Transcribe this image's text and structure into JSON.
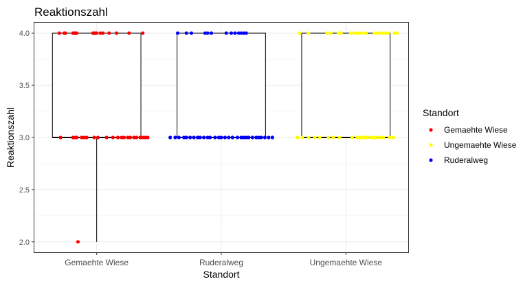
{
  "chart_data": {
    "type": "boxplot-jitter",
    "title": "Reaktionszahl",
    "xlabel": "Standort",
    "ylabel": "Reaktionszahl",
    "categories": [
      "Gemaehte Wiese",
      "Ruderalweg",
      "Ungemaehte Wiese"
    ],
    "ylim": [
      1.9,
      4.1
    ],
    "yticks": [
      "2.0",
      "2.5",
      "3.0",
      "3.5",
      "4.0"
    ],
    "grid": true,
    "legend": {
      "title": "Standort",
      "placement": "right",
      "entries": [
        {
          "label": "Gemaehte Wiese",
          "color": "#ff0000"
        },
        {
          "label": "Ungemaehte Wiese",
          "color": "#ffff00"
        },
        {
          "label": "Ruderalweg",
          "color": "#0000ff"
        }
      ]
    },
    "boxes": [
      {
        "category": "Gemaehte Wiese",
        "min": 2.0,
        "q1": 3.0,
        "median": 3.0,
        "q3": 4.0,
        "max": 4.0,
        "outliers": []
      },
      {
        "category": "Ruderalweg",
        "min": 3.0,
        "q1": 3.0,
        "median": 3.0,
        "q3": 4.0,
        "max": 4.0,
        "outliers": []
      },
      {
        "category": "Ungemaehte Wiese",
        "min": 3.0,
        "q1": 3.0,
        "median": 3.0,
        "q3": 4.0,
        "max": 4.0,
        "outliers": []
      }
    ],
    "series": [
      {
        "name": "Gemaehte Wiese",
        "color": "#ff0000",
        "category": "Gemaehte Wiese",
        "points": [
          {
            "jitter": -0.3,
            "y": 4.0
          },
          {
            "jitter": -0.26,
            "y": 4.0
          },
          {
            "jitter": -0.25,
            "y": 4.0
          },
          {
            "jitter": -0.19,
            "y": 4.0
          },
          {
            "jitter": -0.18,
            "y": 4.0
          },
          {
            "jitter": -0.17,
            "y": 4.0
          },
          {
            "jitter": -0.16,
            "y": 4.0
          },
          {
            "jitter": -0.03,
            "y": 4.0
          },
          {
            "jitter": -0.02,
            "y": 4.0
          },
          {
            "jitter": -0.01,
            "y": 4.0
          },
          {
            "jitter": 0.0,
            "y": 4.0
          },
          {
            "jitter": 0.03,
            "y": 4.0
          },
          {
            "jitter": 0.05,
            "y": 4.0
          },
          {
            "jitter": 0.1,
            "y": 4.0
          },
          {
            "jitter": 0.16,
            "y": 4.0
          },
          {
            "jitter": 0.26,
            "y": 4.0
          },
          {
            "jitter": 0.37,
            "y": 4.0
          },
          {
            "jitter": -0.29,
            "y": 3.0
          },
          {
            "jitter": -0.19,
            "y": 3.0
          },
          {
            "jitter": -0.17,
            "y": 3.0
          },
          {
            "jitter": -0.16,
            "y": 3.0
          },
          {
            "jitter": -0.12,
            "y": 3.0
          },
          {
            "jitter": -0.1,
            "y": 3.0
          },
          {
            "jitter": -0.08,
            "y": 3.0
          },
          {
            "jitter": -0.02,
            "y": 3.0
          },
          {
            "jitter": 0.01,
            "y": 3.0
          },
          {
            "jitter": 0.08,
            "y": 3.0
          },
          {
            "jitter": 0.13,
            "y": 3.0
          },
          {
            "jitter": 0.17,
            "y": 3.0
          },
          {
            "jitter": 0.2,
            "y": 3.0
          },
          {
            "jitter": 0.22,
            "y": 3.0
          },
          {
            "jitter": 0.25,
            "y": 3.0
          },
          {
            "jitter": 0.27,
            "y": 3.0
          },
          {
            "jitter": 0.3,
            "y": 3.0
          },
          {
            "jitter": 0.32,
            "y": 3.0
          },
          {
            "jitter": 0.35,
            "y": 3.0
          },
          {
            "jitter": 0.37,
            "y": 3.0
          },
          {
            "jitter": 0.39,
            "y": 3.0
          },
          {
            "jitter": 0.41,
            "y": 3.0
          },
          {
            "jitter": -0.15,
            "y": 2.0
          }
        ]
      },
      {
        "name": "Ruderalweg",
        "color": "#0000ff",
        "category": "Ruderalweg",
        "points": [
          {
            "jitter": -0.35,
            "y": 4.0
          },
          {
            "jitter": -0.28,
            "y": 4.0
          },
          {
            "jitter": -0.24,
            "y": 4.0
          },
          {
            "jitter": -0.13,
            "y": 4.0
          },
          {
            "jitter": -0.11,
            "y": 4.0
          },
          {
            "jitter": -0.08,
            "y": 4.0
          },
          {
            "jitter": 0.04,
            "y": 4.0
          },
          {
            "jitter": 0.08,
            "y": 4.0
          },
          {
            "jitter": 0.11,
            "y": 4.0
          },
          {
            "jitter": 0.14,
            "y": 4.0
          },
          {
            "jitter": 0.16,
            "y": 4.0
          },
          {
            "jitter": 0.18,
            "y": 4.0
          },
          {
            "jitter": 0.2,
            "y": 4.0
          },
          {
            "jitter": -0.41,
            "y": 3.0
          },
          {
            "jitter": -0.37,
            "y": 3.0
          },
          {
            "jitter": -0.34,
            "y": 3.0
          },
          {
            "jitter": -0.3,
            "y": 3.0
          },
          {
            "jitter": -0.28,
            "y": 3.0
          },
          {
            "jitter": -0.25,
            "y": 3.0
          },
          {
            "jitter": -0.22,
            "y": 3.0
          },
          {
            "jitter": -0.19,
            "y": 3.0
          },
          {
            "jitter": -0.17,
            "y": 3.0
          },
          {
            "jitter": -0.14,
            "y": 3.0
          },
          {
            "jitter": -0.11,
            "y": 3.0
          },
          {
            "jitter": -0.09,
            "y": 3.0
          },
          {
            "jitter": -0.05,
            "y": 3.0
          },
          {
            "jitter": -0.02,
            "y": 3.0
          },
          {
            "jitter": 0.0,
            "y": 3.0
          },
          {
            "jitter": 0.03,
            "y": 3.0
          },
          {
            "jitter": 0.06,
            "y": 3.0
          },
          {
            "jitter": 0.09,
            "y": 3.0
          },
          {
            "jitter": 0.13,
            "y": 3.0
          },
          {
            "jitter": 0.16,
            "y": 3.0
          },
          {
            "jitter": 0.18,
            "y": 3.0
          },
          {
            "jitter": 0.2,
            "y": 3.0
          },
          {
            "jitter": 0.22,
            "y": 3.0
          },
          {
            "jitter": 0.25,
            "y": 3.0
          },
          {
            "jitter": 0.28,
            "y": 3.0
          },
          {
            "jitter": 0.3,
            "y": 3.0
          },
          {
            "jitter": 0.32,
            "y": 3.0
          },
          {
            "jitter": 0.35,
            "y": 3.0
          },
          {
            "jitter": 0.38,
            "y": 3.0
          },
          {
            "jitter": 0.41,
            "y": 3.0
          }
        ]
      },
      {
        "name": "Ungemaehte Wiese",
        "color": "#ffff00",
        "category": "Ungemaehte Wiese",
        "points": [
          {
            "jitter": -0.37,
            "y": 4.0
          },
          {
            "jitter": -0.3,
            "y": 4.0
          },
          {
            "jitter": -0.15,
            "y": 4.0
          },
          {
            "jitter": -0.12,
            "y": 4.0
          },
          {
            "jitter": -0.06,
            "y": 4.0
          },
          {
            "jitter": -0.04,
            "y": 4.0
          },
          {
            "jitter": 0.04,
            "y": 4.0
          },
          {
            "jitter": 0.07,
            "y": 4.0
          },
          {
            "jitter": 0.09,
            "y": 4.0
          },
          {
            "jitter": 0.11,
            "y": 4.0
          },
          {
            "jitter": 0.14,
            "y": 4.0
          },
          {
            "jitter": 0.16,
            "y": 4.0
          },
          {
            "jitter": 0.23,
            "y": 4.0
          },
          {
            "jitter": 0.25,
            "y": 4.0
          },
          {
            "jitter": 0.28,
            "y": 4.0
          },
          {
            "jitter": 0.3,
            "y": 4.0
          },
          {
            "jitter": 0.32,
            "y": 4.0
          },
          {
            "jitter": 0.34,
            "y": 4.0
          },
          {
            "jitter": 0.39,
            "y": 4.0
          },
          {
            "jitter": 0.41,
            "y": 4.0
          },
          {
            "jitter": -0.39,
            "y": 3.0
          },
          {
            "jitter": -0.35,
            "y": 3.0
          },
          {
            "jitter": -0.3,
            "y": 3.0
          },
          {
            "jitter": -0.25,
            "y": 3.0
          },
          {
            "jitter": -0.21,
            "y": 3.0
          },
          {
            "jitter": -0.14,
            "y": 3.0
          },
          {
            "jitter": -0.1,
            "y": 3.0
          },
          {
            "jitter": -0.05,
            "y": 3.0
          },
          {
            "jitter": 0.05,
            "y": 3.0
          },
          {
            "jitter": 0.09,
            "y": 3.0
          },
          {
            "jitter": 0.11,
            "y": 3.0
          },
          {
            "jitter": 0.13,
            "y": 3.0
          },
          {
            "jitter": 0.15,
            "y": 3.0
          },
          {
            "jitter": 0.17,
            "y": 3.0
          },
          {
            "jitter": 0.2,
            "y": 3.0
          },
          {
            "jitter": 0.22,
            "y": 3.0
          },
          {
            "jitter": 0.24,
            "y": 3.0
          },
          {
            "jitter": 0.27,
            "y": 3.0
          },
          {
            "jitter": 0.3,
            "y": 3.0
          },
          {
            "jitter": 0.35,
            "y": 3.0
          },
          {
            "jitter": 0.38,
            "y": 3.0
          }
        ]
      }
    ]
  }
}
